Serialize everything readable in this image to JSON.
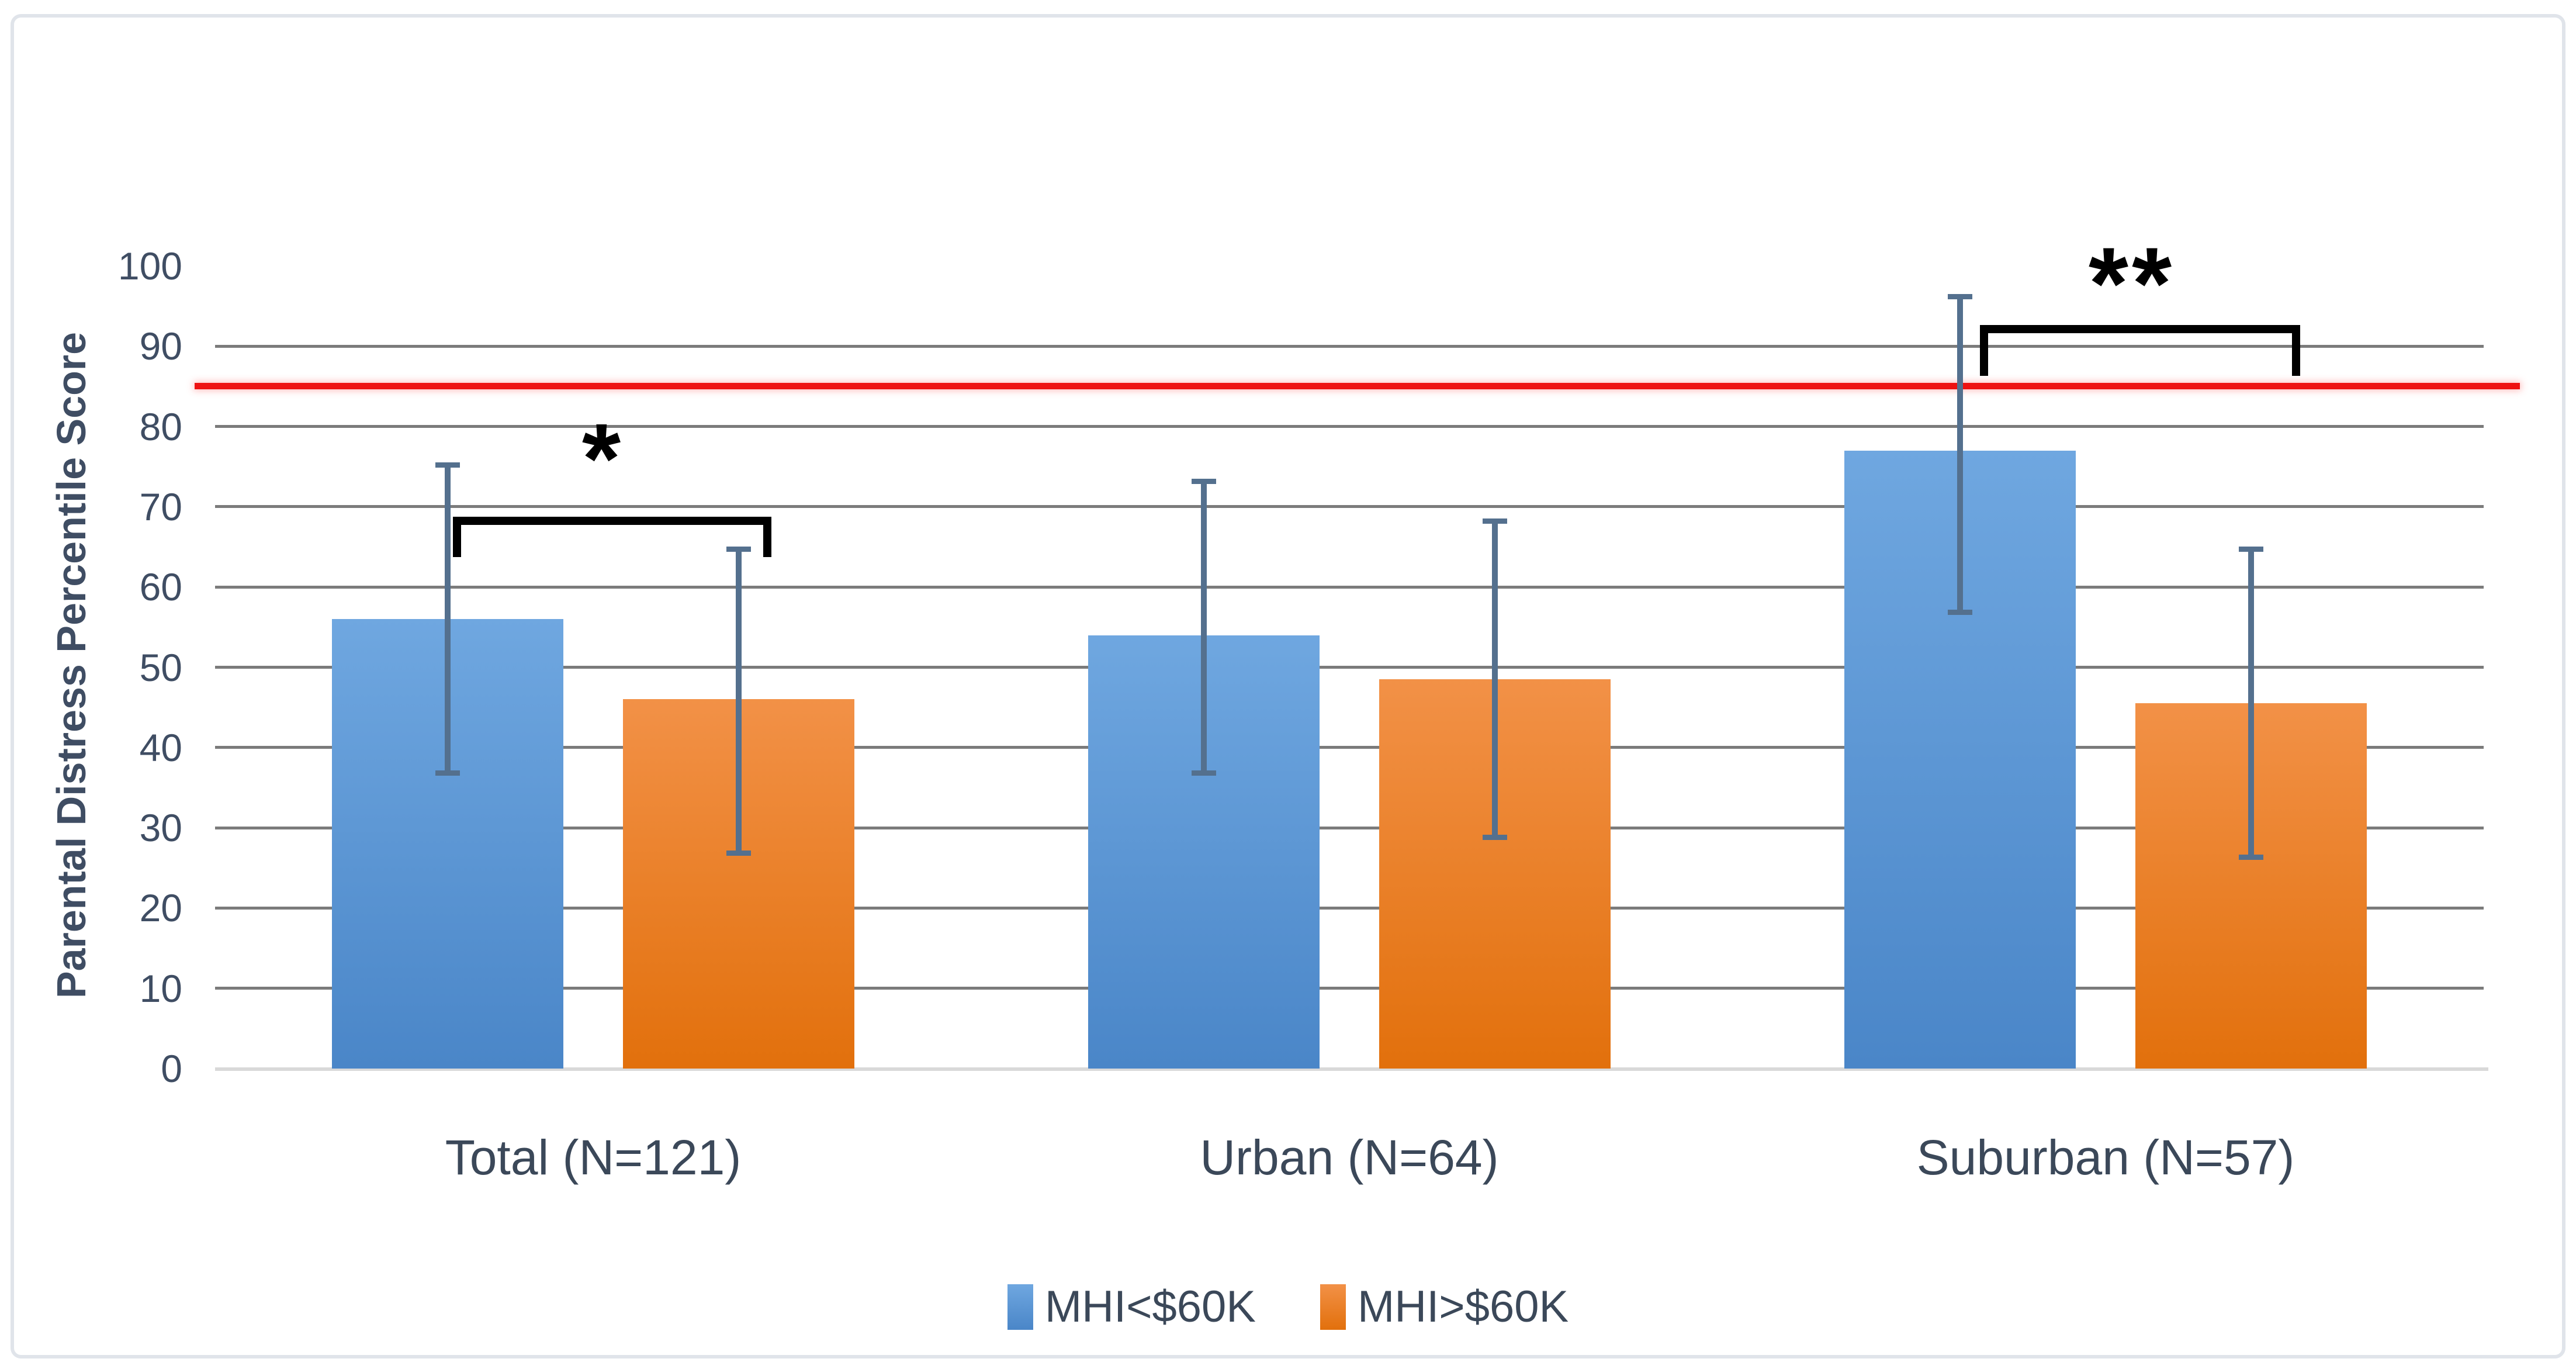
{
  "figure": {
    "background": "#FFFFFF",
    "border_color": "#E0E4EA"
  },
  "axis": {
    "y_title": "Parental Distress Percentile Score",
    "y_tick_labels": [
      "0",
      "10",
      "20",
      "30",
      "40",
      "50",
      "60",
      "70",
      "80",
      "90",
      "100"
    ]
  },
  "legend": {
    "position": "bottom",
    "items": [
      {
        "label": "MHI<$60K",
        "swatch_color": "#4E8BC8"
      },
      {
        "label": "MHI>$60K",
        "swatch_color": "#EC7D2D"
      }
    ]
  },
  "chart_data": {
    "type": "bar",
    "title": "",
    "xlabel": "",
    "ylabel": "Parental Distress Percentile Score",
    "ylim": [
      0,
      100
    ],
    "ytick_step": 10,
    "grid": true,
    "legend_position": "bottom",
    "categories": [
      "Total (N=121)",
      "Urban (N=64)",
      "Suburban (N=57)"
    ],
    "series": [
      {
        "name": "MHI<$60K",
        "color": "#4E8BC8",
        "color_top": "#6FA7E0",
        "color_bottom": "#4A86C8",
        "values": [
          56,
          54,
          77
        ],
        "err_low": [
          37,
          37,
          57
        ],
        "err_high": [
          75,
          73,
          96
        ]
      },
      {
        "name": "MHI>$60K",
        "color": "#EC7D2D",
        "color_top": "#F29147",
        "color_bottom": "#E2700C",
        "values": [
          46,
          48.5,
          45.5
        ],
        "err_low": [
          27,
          29,
          26.5
        ],
        "err_high": [
          64.5,
          68,
          64.5
        ]
      }
    ],
    "error_bar_color": "#54708E",
    "reference_line": {
      "value": 85,
      "color": "#EE1111"
    },
    "significance": [
      {
        "symbol": "*",
        "category": "Total (N=121)",
        "pair": [
          "MHI<$60K",
          "MHI>$60K"
        ]
      },
      {
        "symbol": "**",
        "category": "Suburban (N=57)",
        "pair": [
          "MHI<$60K",
          "MHI>$60K"
        ]
      }
    ]
  }
}
